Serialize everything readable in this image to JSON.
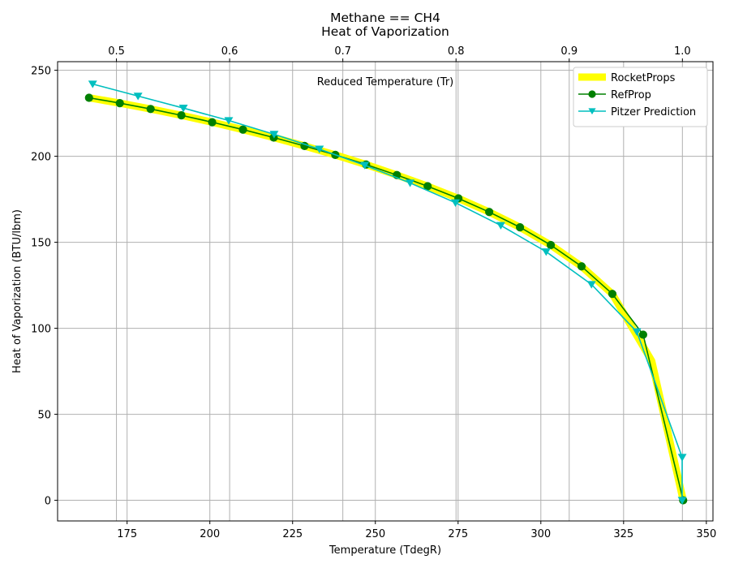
{
  "chart_data": {
    "type": "line",
    "title": "Methane == CH4",
    "subtitle": "Heat of Vaporization",
    "xlabel": "Temperature (TdegR)",
    "ylabel": "Heat of Vaporization (BTU/lbm)",
    "x2label": "Reduced Temperature (Tr)",
    "xlim": [
      154,
      352
    ],
    "ylim": [
      -12,
      255
    ],
    "x2lim": [
      0.448,
      1.027
    ],
    "xticks": [
      175,
      200,
      225,
      250,
      275,
      300,
      325,
      350
    ],
    "yticks": [
      0,
      50,
      100,
      150,
      200,
      250
    ],
    "x2ticks": [
      0.5,
      0.6,
      0.7,
      0.8,
      0.9,
      1.0
    ],
    "x2ticklabels": [
      "0.5",
      "0.6",
      "0.7",
      "0.8",
      "0.9",
      "1.0"
    ],
    "grid": true,
    "legend_position": "top-right",
    "series": [
      {
        "name": "RocketProps",
        "color": "#ffff00",
        "marker": "none",
        "x": [
          163.5,
          172.8,
          182.1,
          191.4,
          200.7,
          210.0,
          219.3,
          228.6,
          237.9,
          247.2,
          256.5,
          265.8,
          275.1,
          284.4,
          293.7,
          303.0,
          312.3,
          321.6,
          333.5,
          343.0
        ],
        "y": [
          234,
          230.9,
          227.5,
          223.8,
          219.8,
          215.5,
          210.9,
          206.0,
          200.8,
          195.2,
          189.1,
          182.6,
          175.5,
          167.6,
          158.7,
          148.4,
          136.0,
          120.0,
          81,
          0
        ]
      },
      {
        "name": "RefProp",
        "color": "#008000",
        "marker": "circle",
        "x": [
          163.5,
          172.8,
          182.1,
          191.4,
          200.7,
          210.0,
          219.3,
          228.6,
          237.9,
          247.2,
          256.5,
          265.8,
          275.1,
          284.4,
          293.7,
          303.0,
          312.3,
          321.6,
          330.9,
          343.0
        ],
        "y": [
          234,
          230.9,
          227.5,
          223.8,
          219.8,
          215.5,
          210.9,
          206.0,
          200.8,
          195.2,
          189.1,
          182.6,
          175.5,
          167.6,
          158.7,
          148.4,
          136.0,
          120.0,
          96.3,
          0
        ]
      },
      {
        "name": "Pitzer Prediction",
        "color": "#00bfbf",
        "marker": "triangle-down",
        "x": [
          164.6,
          178.3,
          192.0,
          205.7,
          219.4,
          233.1,
          246.8,
          260.5,
          274.2,
          287.9,
          301.6,
          315.3,
          329.0,
          342.7,
          342.7
        ],
        "y": [
          242,
          235,
          228,
          220.8,
          212.8,
          204.2,
          194.8,
          184.5,
          173,
          159.8,
          144.5,
          125.5,
          98,
          25,
          0
        ]
      }
    ]
  }
}
